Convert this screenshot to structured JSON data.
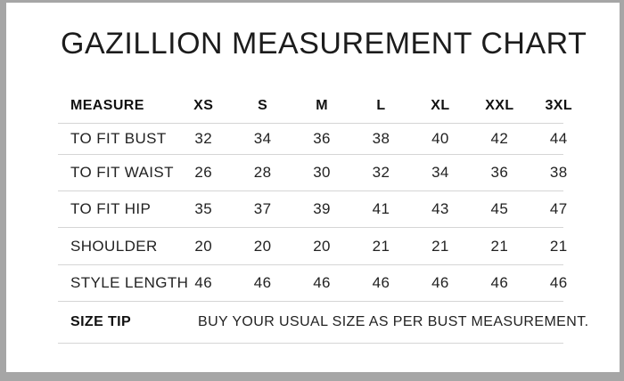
{
  "title": "GAZILLION MEASUREMENT CHART",
  "colors": {
    "matte_frame": "#a6a6a6",
    "page_background": "#ffffff",
    "text": "#222222",
    "header_text": "#111111",
    "divider": "#d5d5d5"
  },
  "chart_data": {
    "type": "table",
    "title": "GAZILLION MEASUREMENT CHART",
    "columns": [
      "MEASURE",
      "XS",
      "S",
      "M",
      "L",
      "XL",
      "XXL",
      "3XL"
    ],
    "rows": [
      {
        "label": "TO FIT BUST",
        "values": [
          32,
          34,
          36,
          38,
          40,
          42,
          44
        ]
      },
      {
        "label": "TO FIT WAIST",
        "values": [
          26,
          28,
          30,
          32,
          34,
          36,
          38
        ]
      },
      {
        "label": "TO FIT HIP",
        "values": [
          35,
          37,
          39,
          41,
          43,
          45,
          47
        ]
      },
      {
        "label": "SHOULDER",
        "values": [
          20,
          20,
          20,
          21,
          21,
          21,
          21
        ]
      },
      {
        "label": "STYLE LENGTH",
        "values": [
          46,
          46,
          46,
          46,
          46,
          46,
          46
        ]
      }
    ],
    "footer": {
      "label": "SIZE TIP",
      "text": "BUY YOUR USUAL SIZE AS PER BUST MEASUREMENT."
    },
    "layout": {
      "grid": "horizontal-dividers-only",
      "header_style": "bold"
    }
  }
}
